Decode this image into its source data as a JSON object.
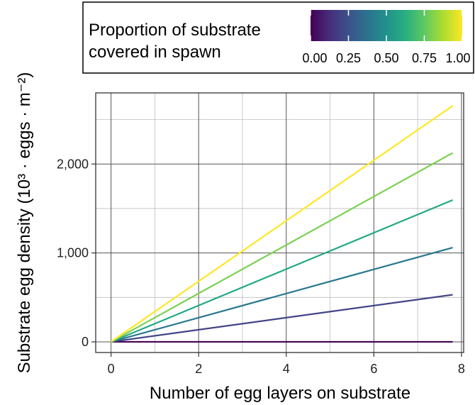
{
  "chart_data": {
    "type": "line",
    "xlabel": "Number of egg layers on substrate",
    "ylabel": "Substrate egg density (10³ · eggs · m⁻²)",
    "xlim": [
      -0.35,
      8.05
    ],
    "ylim": [
      -120,
      2800
    ],
    "x_ticks": [
      0,
      2,
      4,
      6,
      8
    ],
    "x_tick_labels": [
      "0",
      "2",
      "4",
      "6",
      "8"
    ],
    "y_ticks": [
      0,
      1000,
      2000
    ],
    "y_tick_labels": [
      "0",
      "1,000",
      "2,000"
    ],
    "grid": true,
    "legend": {
      "title_lines": [
        "Proportion of substrate",
        "covered in spawn"
      ],
      "position": "top",
      "colorbar_ticks": [
        0.0,
        0.25,
        0.5,
        0.75,
        1.0
      ],
      "colorbar_tick_labels": [
        "0.00",
        "0.25",
        "0.50",
        "0.75",
        "1.00"
      ],
      "colormap": "viridis"
    },
    "series": [
      {
        "proportion": 0.0,
        "color": "#440154",
        "x": [
          0,
          7.8
        ],
        "y": [
          0,
          0
        ]
      },
      {
        "proportion": 0.2,
        "color": "#414487",
        "x": [
          0,
          7.8
        ],
        "y": [
          0,
          530
        ]
      },
      {
        "proportion": 0.4,
        "color": "#2a788e",
        "x": [
          0,
          7.8
        ],
        "y": [
          0,
          1060
        ]
      },
      {
        "proportion": 0.6,
        "color": "#22a884",
        "x": [
          0,
          7.8
        ],
        "y": [
          0,
          1595
        ]
      },
      {
        "proportion": 0.8,
        "color": "#7ad151",
        "x": [
          0,
          7.8
        ],
        "y": [
          0,
          2125
        ]
      },
      {
        "proportion": 1.0,
        "color": "#fde725",
        "x": [
          0,
          7.8
        ],
        "y": [
          0,
          2655
        ]
      }
    ]
  }
}
